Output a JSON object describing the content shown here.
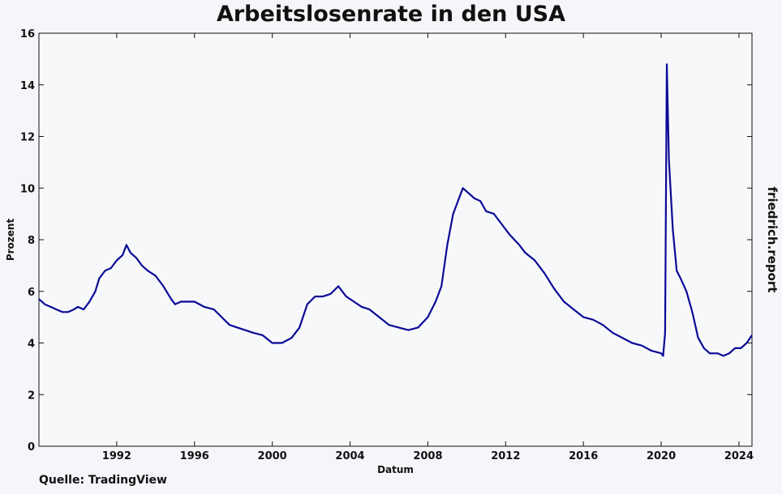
{
  "chart_data": {
    "type": "line",
    "title": "Arbeitslosenrate in den USA",
    "xlabel": "Datum",
    "ylabel": "Prozent",
    "xlim": [
      1988.0,
      2024.67
    ],
    "ylim": [
      0,
      16
    ],
    "x_ticks": [
      "1992",
      "1996",
      "2000",
      "2004",
      "2008",
      "2012",
      "2016",
      "2020",
      "2024"
    ],
    "y_ticks": [
      "0",
      "2",
      "4",
      "6",
      "8",
      "10",
      "12",
      "14",
      "16"
    ],
    "grid": false,
    "line_color": "#0a0a96",
    "series": [
      {
        "x": [
          1988.0,
          1988.3,
          1988.6,
          1988.9,
          1989.2,
          1989.5,
          1989.8,
          1990.0,
          1990.3,
          1990.6,
          1990.9,
          1991.1,
          1991.4,
          1991.7,
          1992.0,
          1992.3,
          1992.5,
          1992.7,
          1993.0,
          1993.3,
          1993.6,
          1994.0,
          1994.4,
          1994.8,
          1995.0,
          1995.3,
          1995.6,
          1996.0,
          1996.5,
          1997.0,
          1997.4,
          1997.8,
          1998.2,
          1998.6,
          1999.0,
          1999.5,
          2000.0,
          2000.5,
          2001.0,
          2001.4,
          2001.8,
          2002.2,
          2002.6,
          2003.0,
          2003.4,
          2003.8,
          2004.2,
          2004.6,
          2005.0,
          2005.5,
          2006.0,
          2006.5,
          2007.0,
          2007.5,
          2008.0,
          2008.4,
          2008.7,
          2009.0,
          2009.3,
          2009.6,
          2009.8,
          2010.1,
          2010.4,
          2010.7,
          2011.0,
          2011.4,
          2011.8,
          2012.2,
          2012.7,
          2013.0,
          2013.5,
          2014.0,
          2014.5,
          2015.0,
          2015.5,
          2016.0,
          2016.5,
          2017.0,
          2017.5,
          2018.0,
          2018.5,
          2019.0,
          2019.5,
          2020.0,
          2020.1,
          2020.2,
          2020.29,
          2020.4,
          2020.6,
          2020.8,
          2021.0,
          2021.3,
          2021.6,
          2021.9,
          2022.2,
          2022.5,
          2022.9,
          2023.2,
          2023.5,
          2023.8,
          2024.1,
          2024.4,
          2024.67
        ],
        "values": [
          5.7,
          5.5,
          5.4,
          5.3,
          5.2,
          5.2,
          5.3,
          5.4,
          5.3,
          5.6,
          6.0,
          6.5,
          6.8,
          6.9,
          7.2,
          7.4,
          7.8,
          7.5,
          7.3,
          7.0,
          6.8,
          6.6,
          6.2,
          5.7,
          5.5,
          5.6,
          5.6,
          5.6,
          5.4,
          5.3,
          5.0,
          4.7,
          4.6,
          4.5,
          4.4,
          4.3,
          4.0,
          4.0,
          4.2,
          4.6,
          5.5,
          5.8,
          5.8,
          5.9,
          6.2,
          5.8,
          5.6,
          5.4,
          5.3,
          5.0,
          4.7,
          4.6,
          4.5,
          4.6,
          5.0,
          5.6,
          6.2,
          7.8,
          9.0,
          9.6,
          10.0,
          9.8,
          9.6,
          9.5,
          9.1,
          9.0,
          8.6,
          8.2,
          7.8,
          7.5,
          7.2,
          6.7,
          6.1,
          5.6,
          5.3,
          5.0,
          4.9,
          4.7,
          4.4,
          4.2,
          4.0,
          3.9,
          3.7,
          3.6,
          3.5,
          4.4,
          14.8,
          11.1,
          8.4,
          6.8,
          6.5,
          6.0,
          5.2,
          4.2,
          3.8,
          3.6,
          3.6,
          3.5,
          3.6,
          3.8,
          3.8,
          4.0,
          4.3
        ]
      }
    ]
  },
  "source": "Quelle: TradingView",
  "brand_side": "friedrich.report",
  "watermark": {
    "line1": "friedrich.",
    "line2": "report"
  }
}
